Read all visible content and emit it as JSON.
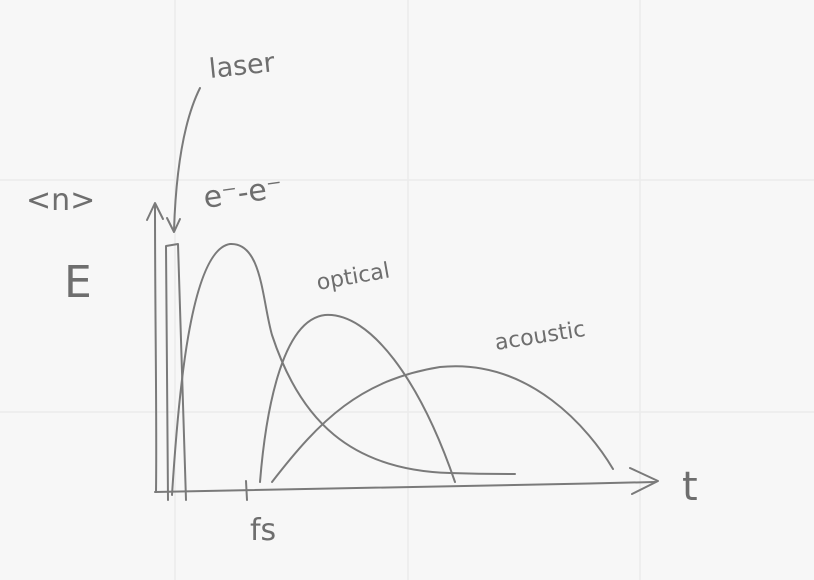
{
  "diagram": {
    "labels": {
      "laser": "laser",
      "ee": "e⁻-e⁻",
      "n": "<n>",
      "e": "E",
      "optical": "optical",
      "acoustic": "acoustic",
      "t": "t",
      "fs": "fs"
    },
    "colors": {
      "background": "#f7f7f7",
      "ink": "#7a7a7a",
      "grid": "#ececec"
    }
  }
}
